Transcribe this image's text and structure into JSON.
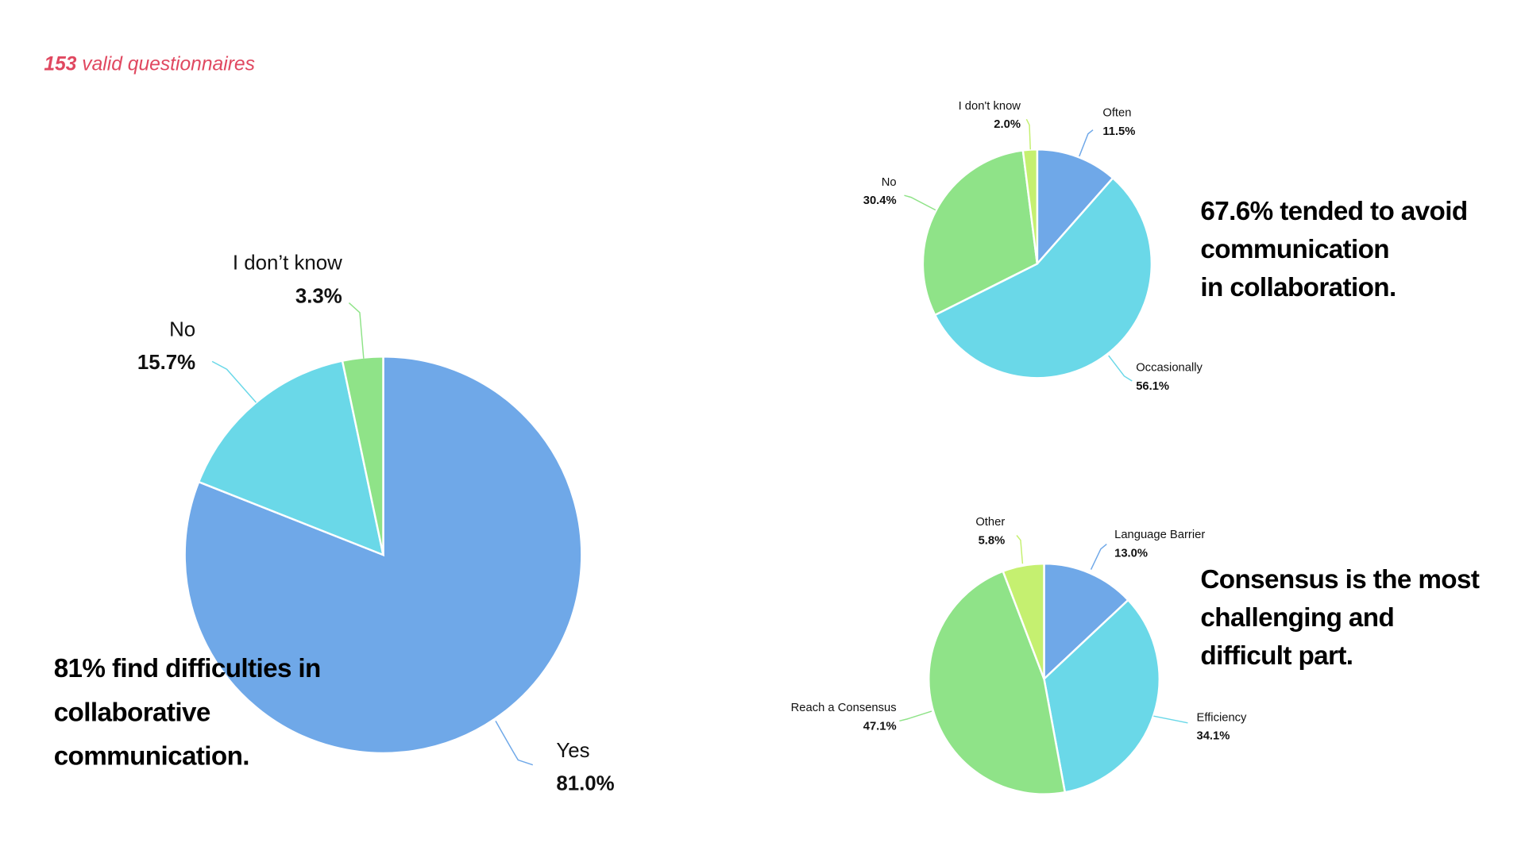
{
  "subtitle": {
    "count": "153",
    "text": "valid questionnaires"
  },
  "headlines": {
    "h1": [
      "81% find difficulties in",
      "collaborative",
      "communication."
    ],
    "h2": [
      "67.6% tended to avoid",
      "communication",
      "in collaboration."
    ],
    "h3": [
      "Consensus is the most",
      "challenging and",
      "difficult part."
    ]
  },
  "chart_data": [
    {
      "type": "pie",
      "title": "",
      "slices": [
        {
          "label": "Yes",
          "value": 81.0,
          "text": "81.0%",
          "color": "#6fa8e8"
        },
        {
          "label": "No",
          "value": 15.7,
          "text": "15.7%",
          "color": "#6ad8e8"
        },
        {
          "label": "I don’t know",
          "value": 3.3,
          "text": "3.3%",
          "color": "#8fe388"
        }
      ]
    },
    {
      "type": "pie",
      "title": "",
      "slices": [
        {
          "label": "Often",
          "value": 11.5,
          "text": "11.5%",
          "color": "#6fa8e8"
        },
        {
          "label": "Occasionally",
          "value": 56.1,
          "text": "56.1%",
          "color": "#6ad8e8"
        },
        {
          "label": "No",
          "value": 30.4,
          "text": "30.4%",
          "color": "#8fe388"
        },
        {
          "label": "I don't know",
          "value": 2.0,
          "text": "2.0%",
          "color": "#c5f070"
        }
      ]
    },
    {
      "type": "pie",
      "title": "",
      "slices": [
        {
          "label": "Language Barrier",
          "value": 13.0,
          "text": "13.0%",
          "color": "#6fa8e8"
        },
        {
          "label": "Efficiency",
          "value": 34.1,
          "text": "34.1%",
          "color": "#6ad8e8"
        },
        {
          "label": "Reach a Consensus",
          "value": 47.1,
          "text": "47.1%",
          "color": "#8fe388"
        },
        {
          "label": "Other",
          "value": 5.8,
          "text": "5.8%",
          "color": "#c5f070"
        }
      ]
    }
  ]
}
